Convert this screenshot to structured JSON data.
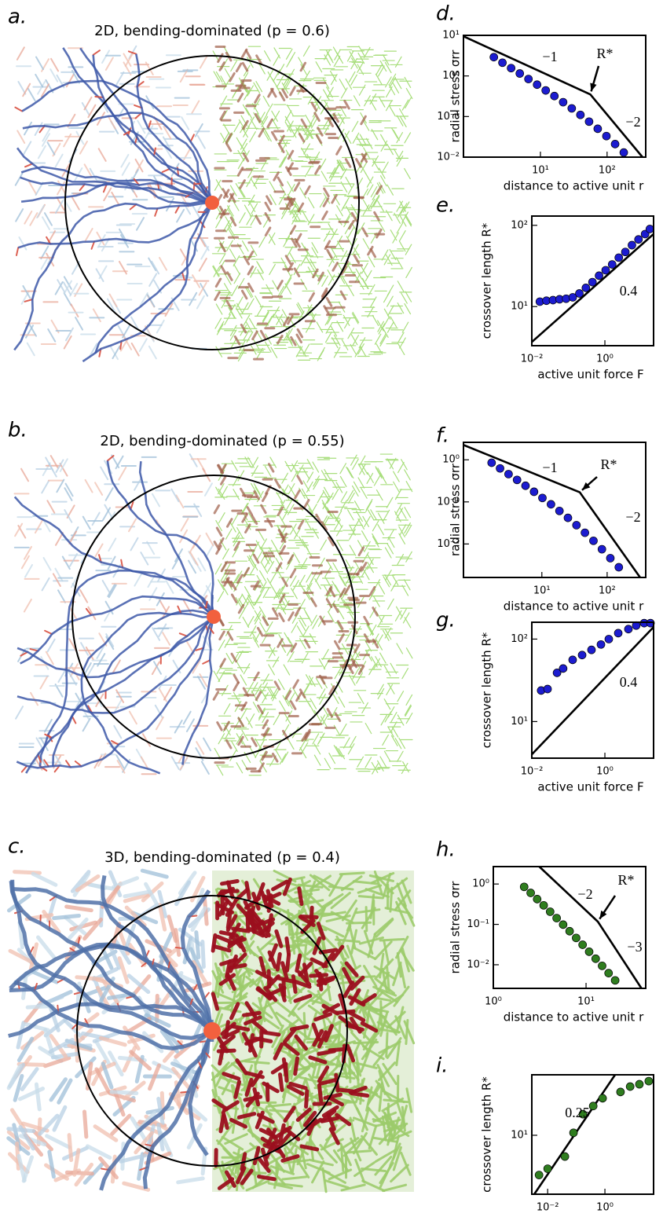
{
  "panels": [
    {
      "label": "a.",
      "title": "2D, bending-dominated (p = 0.6)"
    },
    {
      "label": "b.",
      "title": "2D, bending-dominated (p = 0.55)"
    },
    {
      "label": "c.",
      "title": "3D, bending-dominated (p = 0.4)"
    }
  ],
  "chart_data": [
    {
      "type": "scatter",
      "label": "d.",
      "xlabel": "distance to active unit r",
      "ylabel": "radial stress σrr",
      "log_x": true,
      "log_y": true,
      "color": "#1c1cd0",
      "xlim": [
        0.7,
        380
      ],
      "ylim": [
        0.01,
        10
      ],
      "xticks": [
        {
          "value": 10,
          "label": "10¹"
        },
        {
          "value": 100,
          "label": "10²"
        }
      ],
      "yticks": [
        {
          "value": 0.01,
          "label": "10⁻²"
        },
        {
          "value": 0.1,
          "label": "10⁻¹"
        },
        {
          "value": 1,
          "label": "10⁰"
        },
        {
          "value": 10,
          "label": "10¹"
        }
      ],
      "x": [
        2.0,
        2.69,
        3.63,
        4.9,
        6.61,
        8.91,
        12.0,
        16.2,
        21.9,
        29.5,
        39.8,
        53.7,
        72.4,
        97.7,
        132,
        178
      ],
      "values": [
        2.9,
        2.12,
        1.56,
        1.15,
        0.84,
        0.61,
        0.44,
        0.32,
        0.226,
        0.159,
        0.11,
        0.075,
        0.05,
        0.033,
        0.021,
        0.013
      ],
      "guide": {
        "color": "#000000",
        "x": [
          0.7,
          56,
          340
        ],
        "values": [
          9.5,
          0.35,
          0.01
        ]
      },
      "annotations": [
        "−1",
        "R*",
        "−2"
      ]
    },
    {
      "type": "scatter",
      "label": "e.",
      "xlabel": "active unit force F",
      "ylabel": "crossover length R*",
      "log_x": true,
      "log_y": true,
      "color": "#1c1cd0",
      "xlim": [
        0.01,
        21.5
      ],
      "ylim": [
        3.3,
        130
      ],
      "xticks": [
        {
          "value": 0.01,
          "label": "10⁻²"
        },
        {
          "value": 1,
          "label": "10⁰"
        }
      ],
      "yticks": [
        {
          "value": 10,
          "label": "10¹"
        },
        {
          "value": 100,
          "label": "10²"
        }
      ],
      "x": [
        0.0166,
        0.0251,
        0.038,
        0.0575,
        0.087,
        0.132,
        0.2,
        0.302,
        0.457,
        0.692,
        1.05,
        1.58,
        2.4,
        3.63,
        5.5,
        8.3,
        12.6,
        17
      ],
      "values": [
        11.5,
        11.8,
        12,
        12.3,
        12.5,
        13,
        14.5,
        17,
        20,
        24,
        28,
        33,
        40,
        47,
        57,
        67,
        78,
        90
      ],
      "guide": {
        "color": "#000000",
        "x": [
          0.01,
          21.5
        ],
        "values": [
          3.66,
          78
        ]
      },
      "annotations": [
        "0.4"
      ]
    },
    {
      "type": "scatter",
      "label": "f.",
      "xlabel": "distance to active unit r",
      "ylabel": "radial stress σrr",
      "log_x": true,
      "log_y": true,
      "color": "#1c1cd0",
      "xlim": [
        0.63,
        390
      ],
      "ylim": [
        0.0016,
        2.6
      ],
      "xticks": [
        {
          "value": 10,
          "label": "10¹"
        },
        {
          "value": 100,
          "label": "10²"
        }
      ],
      "yticks": [
        {
          "value": 0.01,
          "label": "10⁻²"
        },
        {
          "value": 0.1,
          "label": "10⁻¹"
        },
        {
          "value": 1,
          "label": "10⁰"
        }
      ],
      "x": [
        1.7,
        2.29,
        3.09,
        4.17,
        5.62,
        7.59,
        10.2,
        13.8,
        18.6,
        25.1,
        33.9,
        45.7,
        61.7,
        83.2,
        112,
        151
      ],
      "values": [
        0.85,
        0.625,
        0.457,
        0.333,
        0.242,
        0.174,
        0.124,
        0.0875,
        0.061,
        0.0417,
        0.028,
        0.0185,
        0.0119,
        0.0075,
        0.0046,
        0.0028
      ],
      "guide": {
        "color": "#000000",
        "x": [
          0.63,
          38,
          320
        ],
        "values": [
          2.26,
          0.17,
          0.0016
        ]
      },
      "annotations": [
        "−1",
        "R*",
        "−2"
      ]
    },
    {
      "type": "scatter",
      "label": "g.",
      "xlabel": "active unit force F",
      "ylabel": "crossover length R*",
      "log_x": true,
      "log_y": true,
      "color": "#1c1cd0",
      "xlim": [
        0.01,
        21.5
      ],
      "ylim": [
        3.6,
        160
      ],
      "xticks": [
        {
          "value": 0.01,
          "label": "10⁻²"
        },
        {
          "value": 1,
          "label": "10⁰"
        }
      ],
      "yticks": [
        {
          "value": 10,
          "label": "10¹"
        },
        {
          "value": 100,
          "label": "10²"
        }
      ],
      "x": [
        0.018,
        0.027,
        0.049,
        0.072,
        0.131,
        0.238,
        0.43,
        0.78,
        1.28,
        2.32,
        4.4,
        7.2,
        11.9,
        17.7
      ],
      "values": [
        23.8,
        24.8,
        39,
        44,
        56,
        64,
        74,
        86,
        100,
        118,
        132,
        146,
        156,
        156
      ],
      "guide": {
        "color": "#000000",
        "x": [
          0.01,
          21.5
        ],
        "values": [
          4.0,
          140
        ]
      },
      "annotations": [
        "0.4"
      ]
    },
    {
      "type": "scatter",
      "label": "h.",
      "xlabel": "distance to active unit r",
      "ylabel": "radial stress σrr",
      "log_x": true,
      "log_y": true,
      "color": "#2f7d1f",
      "xlim": [
        1,
        44
      ],
      "ylim": [
        0.0026,
        2.7
      ],
      "xticks": [
        {
          "value": 1,
          "label": "10⁰"
        },
        {
          "value": 10,
          "label": "10¹"
        }
      ],
      "yticks": [
        {
          "value": 0.01,
          "label": "10⁻²"
        },
        {
          "value": 0.1,
          "label": "10⁻¹"
        },
        {
          "value": 1,
          "label": "10⁰"
        }
      ],
      "x": [
        2.15,
        2.53,
        2.97,
        3.49,
        4.1,
        4.82,
        5.66,
        6.65,
        7.82,
        9.18,
        10.8,
        12.7,
        14.9,
        17.5,
        20.6
      ],
      "values": [
        0.85,
        0.601,
        0.423,
        0.296,
        0.206,
        0.143,
        0.0986,
        0.0677,
        0.0461,
        0.0313,
        0.021,
        0.0141,
        0.0094,
        0.0062,
        0.0041
      ],
      "guide": {
        "color": "#000000",
        "x": [
          3.13,
          13.4,
          39.6
        ],
        "values": [
          2.7,
          0.117,
          0.0026
        ]
      },
      "annotations": [
        "−2",
        "R*",
        "−3"
      ]
    },
    {
      "type": "scatter",
      "label": "i.",
      "xlabel": "active unit force F",
      "ylabel": "crossover length R*",
      "log_x": true,
      "log_y": true,
      "color": "#2f7d1f",
      "xlim": [
        0.0028,
        50
      ],
      "ylim": [
        3.16,
        32.6
      ],
      "xticks": [
        {
          "value": 0.01,
          "label": "10⁻²"
        },
        {
          "value": 1,
          "label": "10⁰"
        }
      ],
      "yticks": [
        {
          "value": 10,
          "label": "10¹"
        }
      ],
      "x": [
        0.005,
        0.01,
        0.04,
        0.08,
        0.17,
        0.39,
        0.83,
        3.5,
        7.6,
        16,
        34
      ],
      "values": [
        4.6,
        5.2,
        6.6,
        10.5,
        15.1,
        17.7,
        20.6,
        23.3,
        25.9,
        27.1,
        28.8
      ],
      "guide": {
        "color": "#000000",
        "x": [
          0.0034,
          2.27
        ],
        "values": [
          3.16,
          32.6
        ]
      },
      "annotations": [
        "0.25"
      ]
    }
  ]
}
